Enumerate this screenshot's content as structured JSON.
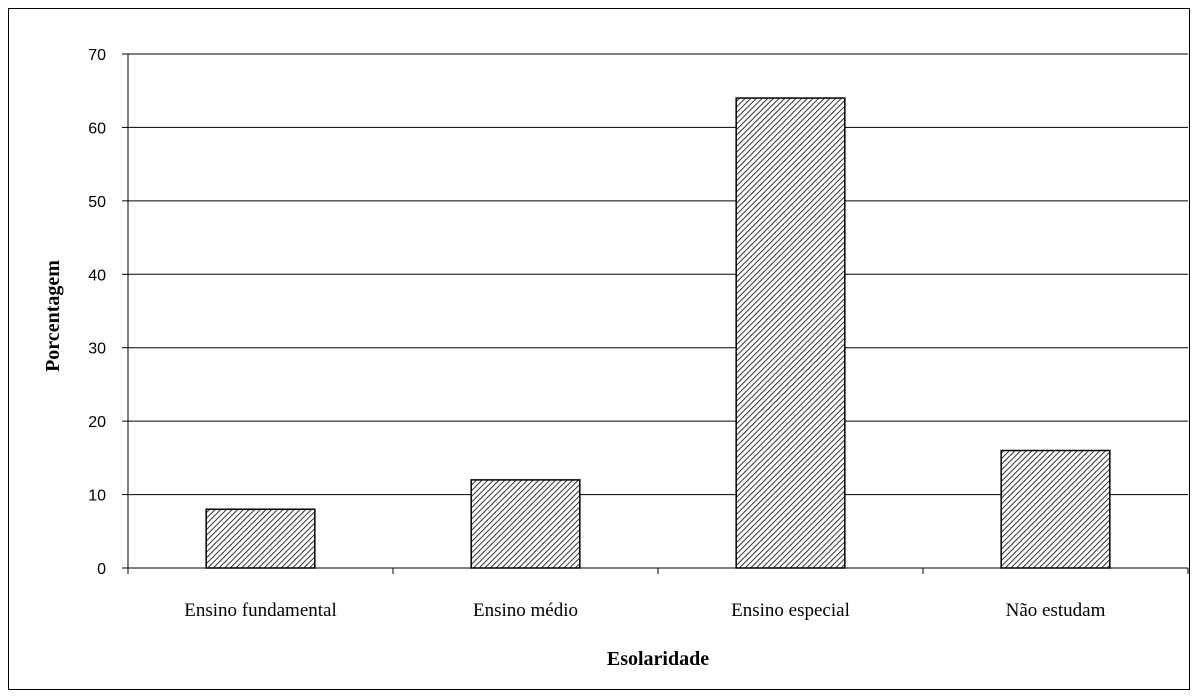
{
  "chart_data": {
    "type": "bar",
    "title": "",
    "categories": [
      "Ensino fundamental",
      "Ensino médio",
      "Ensino especial",
      "Não estudam"
    ],
    "values": [
      8,
      12,
      64,
      16
    ],
    "xlabel": "Esolaridade",
    "ylabel": "Porcentagem",
    "ylim": [
      0,
      70
    ],
    "yticks": [
      0,
      10,
      20,
      30,
      40,
      50,
      60,
      70
    ],
    "grid": true,
    "legend": "none",
    "bar_fill": "diagonal-hatch",
    "colors": {
      "bar_stroke": "#000000",
      "hatch": "#000000",
      "bar_background": "#ffffff",
      "grid": "#000000"
    }
  }
}
